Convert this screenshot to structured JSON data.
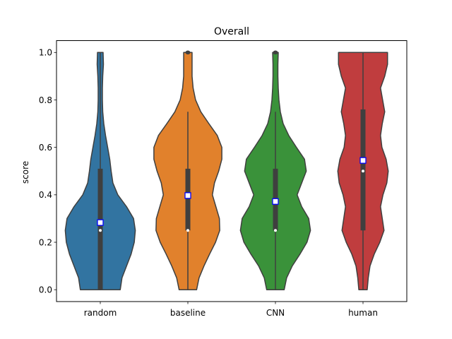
{
  "chart_data": {
    "type": "violin",
    "title": "Overall",
    "xlabel": "",
    "ylabel": "score",
    "ylim": [
      -0.05,
      1.05
    ],
    "yticks": [
      0.0,
      0.2,
      0.4,
      0.6,
      0.8,
      1.0
    ],
    "ytick_labels": [
      "0.0",
      "0.2",
      "0.4",
      "0.6",
      "0.8",
      "1.0"
    ],
    "grid": false,
    "categories": [
      "random",
      "baseline",
      "CNN",
      "human"
    ],
    "series": [
      {
        "category": "random",
        "color": "#3274a1",
        "median": 0.25,
        "mean": 0.283,
        "q1": 0.0,
        "q3": 0.51,
        "whisker_low": 0.0,
        "whisker_high": 1.0,
        "outliers": [],
        "density": [
          [
            0.0,
            0.57
          ],
          [
            0.05,
            0.62
          ],
          [
            0.1,
            0.75
          ],
          [
            0.15,
            0.88
          ],
          [
            0.2,
            0.97
          ],
          [
            0.25,
            1.0
          ],
          [
            0.3,
            0.95
          ],
          [
            0.35,
            0.75
          ],
          [
            0.4,
            0.5
          ],
          [
            0.45,
            0.36
          ],
          [
            0.5,
            0.31
          ],
          [
            0.55,
            0.27
          ],
          [
            0.6,
            0.21
          ],
          [
            0.65,
            0.15
          ],
          [
            0.7,
            0.1
          ],
          [
            0.75,
            0.07
          ],
          [
            0.8,
            0.06
          ],
          [
            0.85,
            0.06
          ],
          [
            0.9,
            0.07
          ],
          [
            0.95,
            0.09
          ],
          [
            1.0,
            0.08
          ]
        ]
      },
      {
        "category": "baseline",
        "color": "#e1812c",
        "median": 0.25,
        "mean": 0.397,
        "q1": 0.25,
        "q3": 0.51,
        "whisker_low": 0.0,
        "whisker_high": 0.75,
        "outliers": [
          1.0
        ],
        "density": [
          [
            0.0,
            0.25
          ],
          [
            0.05,
            0.32
          ],
          [
            0.1,
            0.46
          ],
          [
            0.15,
            0.62
          ],
          [
            0.2,
            0.79
          ],
          [
            0.25,
            0.91
          ],
          [
            0.3,
            0.9
          ],
          [
            0.35,
            0.8
          ],
          [
            0.4,
            0.7
          ],
          [
            0.45,
            0.76
          ],
          [
            0.5,
            0.88
          ],
          [
            0.55,
            0.97
          ],
          [
            0.6,
            0.97
          ],
          [
            0.65,
            0.84
          ],
          [
            0.7,
            0.6
          ],
          [
            0.75,
            0.37
          ],
          [
            0.8,
            0.22
          ],
          [
            0.85,
            0.15
          ],
          [
            0.9,
            0.12
          ],
          [
            0.95,
            0.12
          ],
          [
            1.0,
            0.12
          ]
        ]
      },
      {
        "category": "CNN",
        "color": "#3a923a",
        "median": 0.25,
        "mean": 0.372,
        "q1": 0.25,
        "q3": 0.51,
        "whisker_low": 0.0,
        "whisker_high": 0.75,
        "outliers": [
          1.0
        ],
        "density": [
          [
            0.0,
            0.25
          ],
          [
            0.05,
            0.32
          ],
          [
            0.1,
            0.48
          ],
          [
            0.15,
            0.7
          ],
          [
            0.2,
            0.9
          ],
          [
            0.25,
            1.0
          ],
          [
            0.3,
            0.95
          ],
          [
            0.35,
            0.75
          ],
          [
            0.4,
            0.62
          ],
          [
            0.45,
            0.75
          ],
          [
            0.5,
            0.88
          ],
          [
            0.55,
            0.83
          ],
          [
            0.6,
            0.6
          ],
          [
            0.65,
            0.38
          ],
          [
            0.7,
            0.22
          ],
          [
            0.75,
            0.14
          ],
          [
            0.8,
            0.1
          ],
          [
            0.85,
            0.08
          ],
          [
            0.9,
            0.07
          ],
          [
            0.95,
            0.07
          ],
          [
            1.0,
            0.08
          ]
        ]
      },
      {
        "category": "human",
        "color": "#c03d3e",
        "median": 0.5,
        "mean": 0.545,
        "q1": 0.25,
        "q3": 0.76,
        "whisker_low": 0.0,
        "whisker_high": 1.0,
        "outliers": [],
        "density": [
          [
            0.0,
            0.12
          ],
          [
            0.05,
            0.15
          ],
          [
            0.1,
            0.2
          ],
          [
            0.15,
            0.32
          ],
          [
            0.2,
            0.48
          ],
          [
            0.25,
            0.6
          ],
          [
            0.3,
            0.55
          ],
          [
            0.35,
            0.5
          ],
          [
            0.4,
            0.57
          ],
          [
            0.45,
            0.68
          ],
          [
            0.5,
            0.72
          ],
          [
            0.55,
            0.66
          ],
          [
            0.6,
            0.54
          ],
          [
            0.65,
            0.5
          ],
          [
            0.7,
            0.55
          ],
          [
            0.75,
            0.62
          ],
          [
            0.8,
            0.56
          ],
          [
            0.85,
            0.5
          ],
          [
            0.9,
            0.62
          ],
          [
            0.95,
            0.7
          ],
          [
            1.0,
            0.7
          ]
        ]
      }
    ]
  }
}
